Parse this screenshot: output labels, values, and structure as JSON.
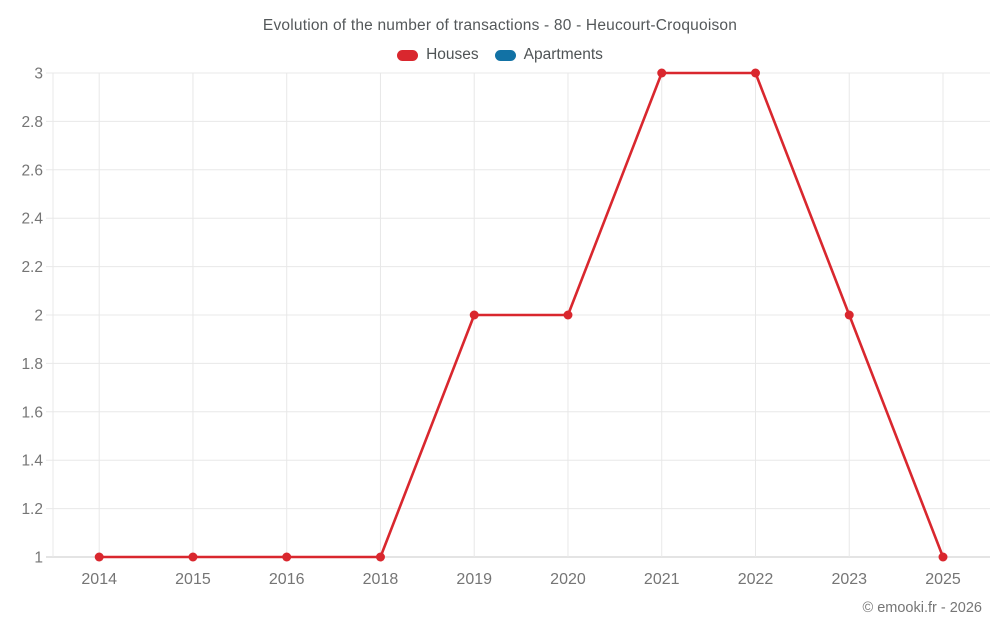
{
  "header": {
    "title": "Evolution of the number of transactions - 80 - Heucourt-Croquoison",
    "legend": [
      {
        "label": "Houses",
        "color": "#d9272e"
      },
      {
        "label": "Apartments",
        "color": "#1272a5"
      }
    ]
  },
  "chart_data": {
    "type": "line",
    "title": "Evolution of the number of transactions - 80 - Heucourt-Croquoison",
    "categories": [
      "2014",
      "2015",
      "2016",
      "2018",
      "2019",
      "2020",
      "2021",
      "2022",
      "2023",
      "2025"
    ],
    "series": [
      {
        "name": "Houses",
        "color": "#d9272e",
        "values": [
          1,
          1,
          1,
          1,
          2,
          2,
          3,
          3,
          2,
          1
        ]
      },
      {
        "name": "Apartments",
        "color": "#1272a5",
        "values": []
      }
    ],
    "xlabel": "",
    "ylabel": "",
    "ylim": [
      1,
      3
    ],
    "yticks": [
      1,
      1.2,
      1.4,
      1.6,
      1.8,
      2,
      2.2,
      2.4,
      2.6,
      2.8,
      3
    ],
    "grid": true,
    "legend_position": "top",
    "colors": {
      "grid": "#e8e8e8",
      "baseline": "#c9c9c9",
      "tick_label": "#757575"
    }
  },
  "footer": {
    "credit": "© emooki.fr - 2026"
  }
}
